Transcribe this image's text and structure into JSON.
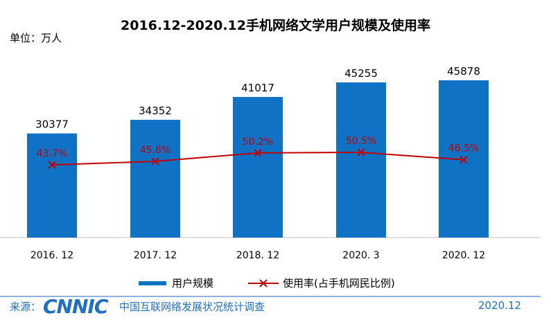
{
  "chart_data": {
    "type": "bar",
    "title": "2016.12-2020.12手机网络文学用户规模及使用率",
    "unit_label": "单位：万人",
    "categories": [
      "2016. 12",
      "2017. 12",
      "2018. 12",
      "2020. 3",
      "2020. 12"
    ],
    "series": [
      {
        "name": "用户规模",
        "type": "bar",
        "values": [
          30377,
          34352,
          41017,
          45255,
          45878
        ],
        "labels": [
          "30377",
          "34352",
          "41017",
          "45255",
          "45878"
        ],
        "color": "#0f72c4"
      },
      {
        "name": "使用率(占手机网民比例)",
        "type": "line",
        "values": [
          43.7,
          45.6,
          50.2,
          50.5,
          46.5
        ],
        "labels": [
          "43.7%",
          "45.6%",
          "50.2%",
          "50.5%",
          "46.5%"
        ],
        "color": "#c00000"
      }
    ]
  },
  "footer": {
    "source_label": "来源：",
    "logo": "CNNIC",
    "org": "中国互联网络发展状况统计调查",
    "date": "2020.12"
  }
}
